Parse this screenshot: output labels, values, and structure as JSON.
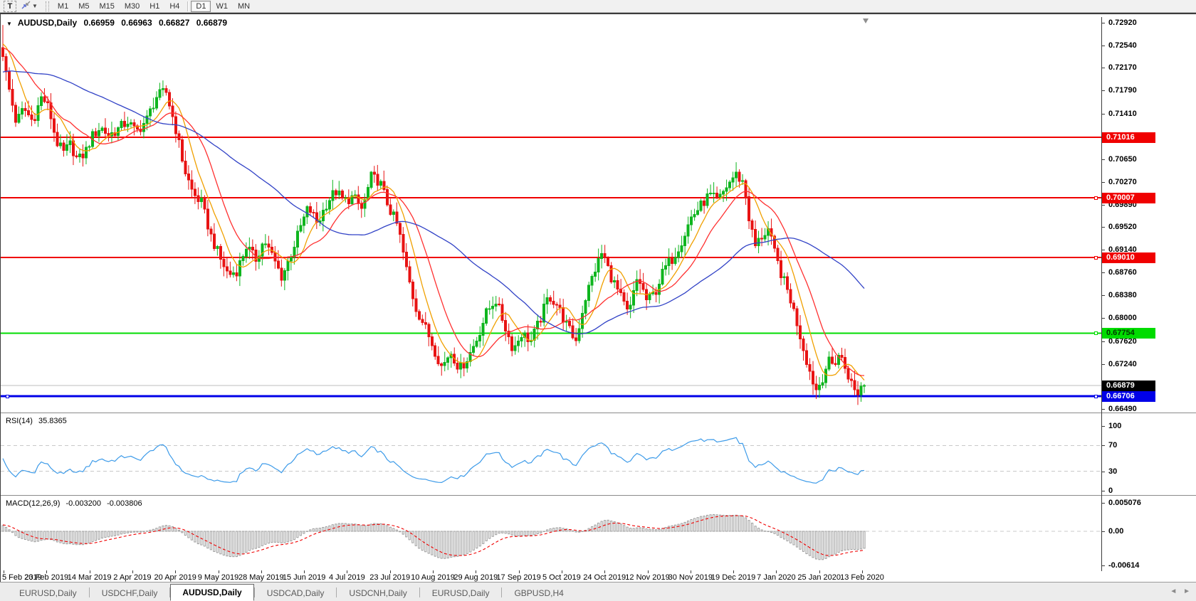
{
  "toolbar": {
    "text_tool_label": "T",
    "timeframes": [
      "M1",
      "M5",
      "M15",
      "M30",
      "H1",
      "H4",
      "D1",
      "W1",
      "MN"
    ],
    "active_timeframe": "D1"
  },
  "title": {
    "symbol": "AUDUSD,Daily",
    "open": "0.66959",
    "high": "0.66963",
    "low": "0.66827",
    "close": "0.66879"
  },
  "chart_data": {
    "type": "candlestick",
    "symbol": "AUDUSD",
    "timeframe": "Daily",
    "ohlc": {
      "open": 0.66959,
      "high": 0.66963,
      "low": 0.66827,
      "close": 0.66879
    },
    "y_axis": {
      "min": 0.6649,
      "max": 0.7292,
      "ticks": [
        "0.72920",
        "0.72540",
        "0.72170",
        "0.71790",
        "0.71410",
        "0.70650",
        "0.70270",
        "0.69890",
        "0.69520",
        "0.69140",
        "0.68760",
        "0.68380",
        "0.68000",
        "0.67620",
        "0.67240",
        "0.66490"
      ]
    },
    "x_axis": {
      "labels": [
        "5 Feb 2019",
        "23 Feb 2019",
        "14 Mar 2019",
        "2 Apr 2019",
        "20 Apr 2019",
        "9 May 2019",
        "28 May 2019",
        "15 Jun 2019",
        "4 Jul 2019",
        "23 Jul 2019",
        "10 Aug 2019",
        "29 Aug 2019",
        "17 Sep 2019",
        "5 Oct 2019",
        "24 Oct 2019",
        "12 Nov 2019",
        "30 Nov 2019",
        "19 Dec 2019",
        "7 Jan 2020",
        "25 Jan 2020",
        "13 Feb 2020"
      ]
    },
    "num_candles": 270,
    "price_path_anchors": [
      [
        0,
        0.7268
      ],
      [
        6,
        0.7215
      ],
      [
        12,
        0.718
      ],
      [
        22,
        0.7125
      ],
      [
        32,
        0.715
      ],
      [
        45,
        0.7128
      ],
      [
        58,
        0.717
      ],
      [
        68,
        0.7148
      ],
      [
        78,
        0.7095
      ],
      [
        88,
        0.7075
      ],
      [
        98,
        0.709
      ],
      [
        108,
        0.7062
      ],
      [
        118,
        0.7075
      ],
      [
        128,
        0.7102
      ],
      [
        140,
        0.7118
      ],
      [
        152,
        0.7105
      ],
      [
        165,
        0.7115
      ],
      [
        178,
        0.7128
      ],
      [
        190,
        0.711
      ],
      [
        205,
        0.713
      ],
      [
        218,
        0.7168
      ],
      [
        232,
        0.7178
      ],
      [
        245,
        0.712
      ],
      [
        258,
        0.7048
      ],
      [
        270,
        0.7008
      ],
      [
        282,
        0.6992
      ],
      [
        295,
        0.6938
      ],
      [
        308,
        0.69
      ],
      [
        320,
        0.6872
      ],
      [
        332,
        0.688
      ],
      [
        345,
        0.692
      ],
      [
        358,
        0.6898
      ],
      [
        370,
        0.693
      ],
      [
        382,
        0.6902
      ],
      [
        395,
        0.6868
      ],
      [
        408,
        0.6908
      ],
      [
        420,
        0.6948
      ],
      [
        432,
        0.6985
      ],
      [
        445,
        0.6958
      ],
      [
        458,
        0.6992
      ],
      [
        470,
        0.7012
      ],
      [
        482,
        0.6995
      ],
      [
        495,
        0.7002
      ],
      [
        508,
        0.698
      ],
      [
        520,
        0.7035
      ],
      [
        532,
        0.7028
      ],
      [
        545,
        0.6985
      ],
      [
        558,
        0.6952
      ],
      [
        570,
        0.688
      ],
      [
        582,
        0.682
      ],
      [
        595,
        0.6788
      ],
      [
        608,
        0.6752
      ],
      [
        620,
        0.6718
      ],
      [
        632,
        0.6745
      ],
      [
        645,
        0.6715
      ],
      [
        658,
        0.6738
      ],
      [
        670,
        0.6768
      ],
      [
        682,
        0.6808
      ],
      [
        695,
        0.6832
      ],
      [
        708,
        0.6788
      ],
      [
        720,
        0.6748
      ],
      [
        732,
        0.6775
      ],
      [
        745,
        0.6762
      ],
      [
        758,
        0.6798
      ],
      [
        770,
        0.6838
      ],
      [
        782,
        0.6822
      ],
      [
        795,
        0.6788
      ],
      [
        808,
        0.6762
      ],
      [
        820,
        0.6828
      ],
      [
        832,
        0.6872
      ],
      [
        845,
        0.691
      ],
      [
        858,
        0.6868
      ],
      [
        870,
        0.6838
      ],
      [
        882,
        0.6805
      ],
      [
        895,
        0.687
      ],
      [
        908,
        0.6828
      ],
      [
        920,
        0.6845
      ],
      [
        932,
        0.6882
      ],
      [
        945,
        0.6902
      ],
      [
        958,
        0.6932
      ],
      [
        970,
        0.6968
      ],
      [
        982,
        0.6985
      ],
      [
        995,
        0.7005
      ],
      [
        1008,
        0.6995
      ],
      [
        1020,
        0.702
      ],
      [
        1032,
        0.704
      ],
      [
        1044,
        0.7025
      ],
      [
        1052,
        0.696
      ],
      [
        1060,
        0.692
      ],
      [
        1068,
        0.6935
      ],
      [
        1078,
        0.6948
      ],
      [
        1088,
        0.6905
      ],
      [
        1098,
        0.6868
      ],
      [
        1108,
        0.6838
      ],
      [
        1118,
        0.6795
      ],
      [
        1128,
        0.6748
      ],
      [
        1138,
        0.6705
      ],
      [
        1146,
        0.668
      ],
      [
        1154,
        0.67
      ],
      [
        1162,
        0.6728
      ],
      [
        1170,
        0.6722
      ],
      [
        1178,
        0.6742
      ],
      [
        1186,
        0.6718
      ],
      [
        1194,
        0.6695
      ],
      [
        1202,
        0.6672
      ],
      [
        1210,
        0.669
      ],
      [
        1215,
        0.6688
      ]
    ],
    "levels": [
      {
        "price": 0.71016,
        "label": "0.71016",
        "color": "#f00000",
        "text_color": "#ffffff",
        "thickness": 2,
        "handles": []
      },
      {
        "price": 0.70007,
        "label": "0.70007",
        "color": "#f00000",
        "text_color": "#ffffff",
        "thickness": 2,
        "handles": [
          "right"
        ]
      },
      {
        "price": 0.6901,
        "label": "0.69010",
        "color": "#f00000",
        "text_color": "#ffffff",
        "thickness": 2,
        "handles": [
          "right"
        ]
      },
      {
        "price": 0.67754,
        "label": "0.67754",
        "color": "#00dc00",
        "text_color": "#003800",
        "thickness": 2,
        "handles": [
          "right"
        ]
      },
      {
        "price": 0.66706,
        "label": "0.66706",
        "color": "#0000e8",
        "text_color": "#ffffff",
        "thickness": 3,
        "handles": [
          "left",
          "right"
        ]
      }
    ],
    "bid": {
      "price": 0.66879,
      "label": "0.66879",
      "line_color": "#bdbdbd",
      "tag_bg": "#000000",
      "tag_text": "#ffffff"
    },
    "moving_averages": [
      {
        "name": "fast",
        "period": 8,
        "color": "#f0a000"
      },
      {
        "name": "medium",
        "period": 16,
        "color": "#ff3030"
      },
      {
        "name": "slow",
        "period": 50,
        "color": "#3142c6"
      }
    ],
    "indicators": {
      "rsi": {
        "label": "RSI(14)",
        "value": "35.8365",
        "period": 14,
        "color": "#3d9be9",
        "axis_ticks": [
          {
            "label": "100",
            "v": 100
          },
          {
            "label": "70",
            "v": 70
          },
          {
            "label": "30",
            "v": 30
          },
          {
            "label": "0",
            "v": 0
          }
        ],
        "dashed_levels": [
          70,
          30
        ]
      },
      "macd": {
        "label": "MACD(12,26,9)",
        "macd_value": "-0.003200",
        "signal_value": "-0.003806",
        "histogram_color": "#9e9e9e",
        "signal_color": "#f00000",
        "axis_ticks": [
          {
            "label": "0.005076",
            "v": 0.005076
          },
          {
            "label": "0.00",
            "v": 0.0
          },
          {
            "label": "-0.00614",
            "v": -0.00614
          }
        ]
      }
    },
    "colors": {
      "bull": "#0eb51e",
      "bear": "#e81313",
      "background": "#ffffff"
    }
  },
  "tabs": {
    "items": [
      "EURUSD,Daily",
      "USDCHF,Daily",
      "AUDUSD,Daily",
      "USDCAD,Daily",
      "USDCNH,Daily",
      "EURUSD,Daily",
      "GBPUSD,H4"
    ],
    "active_index": 2,
    "scroll_left": "◄",
    "scroll_right": "►"
  }
}
